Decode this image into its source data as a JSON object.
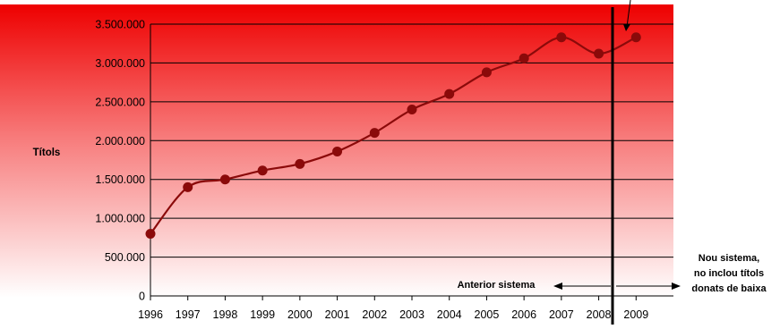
{
  "chart_data": {
    "type": "line",
    "title": "",
    "xlabel": "",
    "ylabel": "Títols",
    "categories": [
      "1996",
      "1997",
      "1998",
      "1999",
      "2000",
      "2001",
      "2002",
      "2003",
      "2004",
      "2005",
      "2006",
      "2007",
      "2008",
      "2009"
    ],
    "series": [
      {
        "values": [
          800000,
          1400000,
          1500000,
          1615000,
          1700000,
          1860000,
          2100000,
          2400000,
          2600000,
          2880000,
          3060000,
          3330000,
          3120000,
          3330000
        ]
      }
    ],
    "ylim": [
      0,
      3500000
    ],
    "yticks": [
      0,
      500000,
      1000000,
      1500000,
      2000000,
      2500000,
      3000000,
      3500000
    ],
    "ytick_labels": [
      "0",
      "500.000",
      "1.000.000",
      "1.500.000",
      "2.000.000",
      "2.500.000",
      "3.000.000",
      "3.500.000"
    ],
    "grid": true,
    "legend": "none",
    "annotations": {
      "old_system": "Anterior sistema",
      "new_system_lines": [
        "Nou sistema,",
        "no inclou títols",
        "donats de baixa"
      ]
    },
    "colors": {
      "gradient_top": "#ee0000",
      "gradient_bottom": "#ffffff",
      "line": "#8b0a0a",
      "marker": "#8b0a0a"
    }
  }
}
